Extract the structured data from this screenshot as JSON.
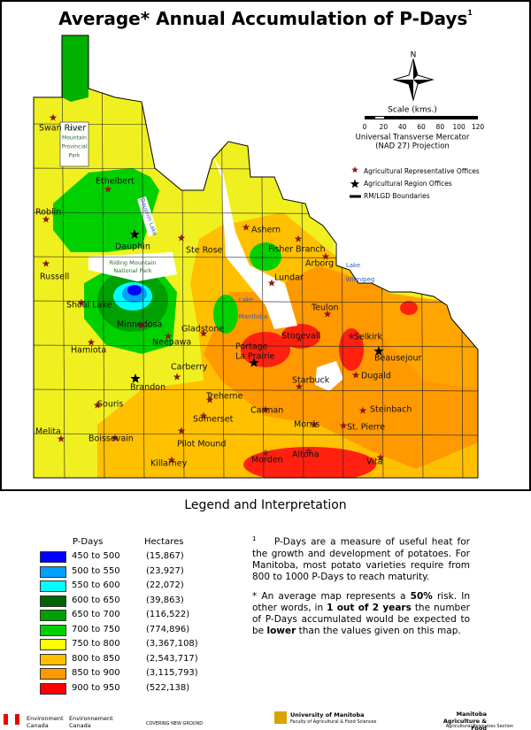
{
  "title": "Average* Annual Accumulation of P-Days",
  "title_sup": "1",
  "map": {
    "north": "N",
    "scale_title": "Scale (kms.)",
    "scale_ticks": [
      "0",
      "20",
      "40",
      "60",
      "80",
      "100",
      "120"
    ],
    "projection": [
      "Universal Transverse Mercator",
      "(NAD 27) Projection"
    ],
    "map_legend": [
      "Agricultural Representative Offices",
      "Agricultural Region Offices",
      "RM/LGD Boundaries"
    ],
    "features": [
      [
        "Duck",
        "Mountain",
        "Provincial",
        "Park"
      ],
      [
        "Riding Mountain",
        "National Park"
      ],
      [
        "Dauphin Lake"
      ],
      [
        "Lake",
        "Manitoba"
      ],
      [
        "Lake",
        "Winnipeg"
      ]
    ],
    "places": [
      {
        "label": "Swan River"
      },
      {
        "label": "Ethelbert"
      },
      {
        "label": "Roblin"
      },
      {
        "label": "Dauphin"
      },
      {
        "label": "Ste Rose"
      },
      {
        "label": "Ashern"
      },
      {
        "label": "Fisher Branch"
      },
      {
        "label": "Arborg"
      },
      {
        "label": "Russell"
      },
      {
        "label": "Lundar"
      },
      {
        "label": "Shoal Lake"
      },
      {
        "label": "Minnedosa"
      },
      {
        "label": "Gladstone"
      },
      {
        "label": "Neepawa"
      },
      {
        "label": "Teulon"
      },
      {
        "label": "Hamiota"
      },
      {
        "label": "Stonevall"
      },
      {
        "label": "Selkirk"
      },
      {
        "label": "Beausejour"
      },
      {
        "label": [
          "Portage",
          "La Prairie"
        ]
      },
      {
        "label": "Carberry"
      },
      {
        "label": "Brandon"
      },
      {
        "label": "Starbuck"
      },
      {
        "label": "Dugald"
      },
      {
        "label": "Souris"
      },
      {
        "label": "Treherne"
      },
      {
        "label": "Carman"
      },
      {
        "label": "Steinbach"
      },
      {
        "label": "Somerset"
      },
      {
        "label": "Morris"
      },
      {
        "label": "St. Pierre"
      },
      {
        "label": "Melita"
      },
      {
        "label": "Boissevain"
      },
      {
        "label": "Pilot Mound"
      },
      {
        "label": "Killarney"
      },
      {
        "label": "Morden"
      },
      {
        "label": "Altona"
      },
      {
        "label": "Vita"
      }
    ]
  },
  "legend": {
    "title": "Legend and Interpretation",
    "headers": [
      "P-Days",
      "Hectares"
    ],
    "rows": [
      {
        "range": "450 to 500",
        "hectares": "(15,867)",
        "color": "#0000ff"
      },
      {
        "range": "500 to 550",
        "hectares": "(23,927)",
        "color": "#00a0ff"
      },
      {
        "range": "550 to 600",
        "hectares": "(22,072)",
        "color": "#00ffff"
      },
      {
        "range": "600 to 650",
        "hectares": "(39,863)",
        "color": "#006400"
      },
      {
        "range": "650 to 700",
        "hectares": "(116,522)",
        "color": "#00a000"
      },
      {
        "range": "700 to 750",
        "hectares": "(774,896)",
        "color": "#00d000"
      },
      {
        "range": "750 to 800",
        "hectares": "(3,367,108)",
        "color": "#ffff00"
      },
      {
        "range": "800 to 850",
        "hectares": "(2,543,717)",
        "color": "#ffc000"
      },
      {
        "range": "850 to 900",
        "hectares": "(3,115,793)",
        "color": "#ff9900"
      },
      {
        "range": "900 to 950",
        "hectares": "(522,138)",
        "color": "#ff0000"
      }
    ]
  },
  "notes": {
    "note1_mark": "1",
    "note1": "P-Days are a measure of useful heat for the growth and development of potatoes. For Manitoba, most potato varieties require from 800 to 1000 P-Days to reach maturity.",
    "note2": [
      {
        "text": "* An average map represents a ",
        "bold": false
      },
      {
        "text": "50%",
        "bold": true
      },
      {
        "text": " risk. In other words, in ",
        "bold": false
      },
      {
        "text": "1 out of 2 years",
        "bold": true
      },
      {
        "text": " the number of P-Days accumulated would be expected to be ",
        "bold": false
      },
      {
        "text": "lower",
        "bold": true
      },
      {
        "text": " than the values given on this map.",
        "bold": false
      }
    ]
  },
  "footer": [
    "Environment Canada",
    "Environnement Canada",
    "COVERING NEW GROUND",
    "University of Manitoba",
    "Faculty of Agricultural & Food Sciences",
    "Manitoba Agriculture & Food",
    "Agricultural Resources Section"
  ]
}
